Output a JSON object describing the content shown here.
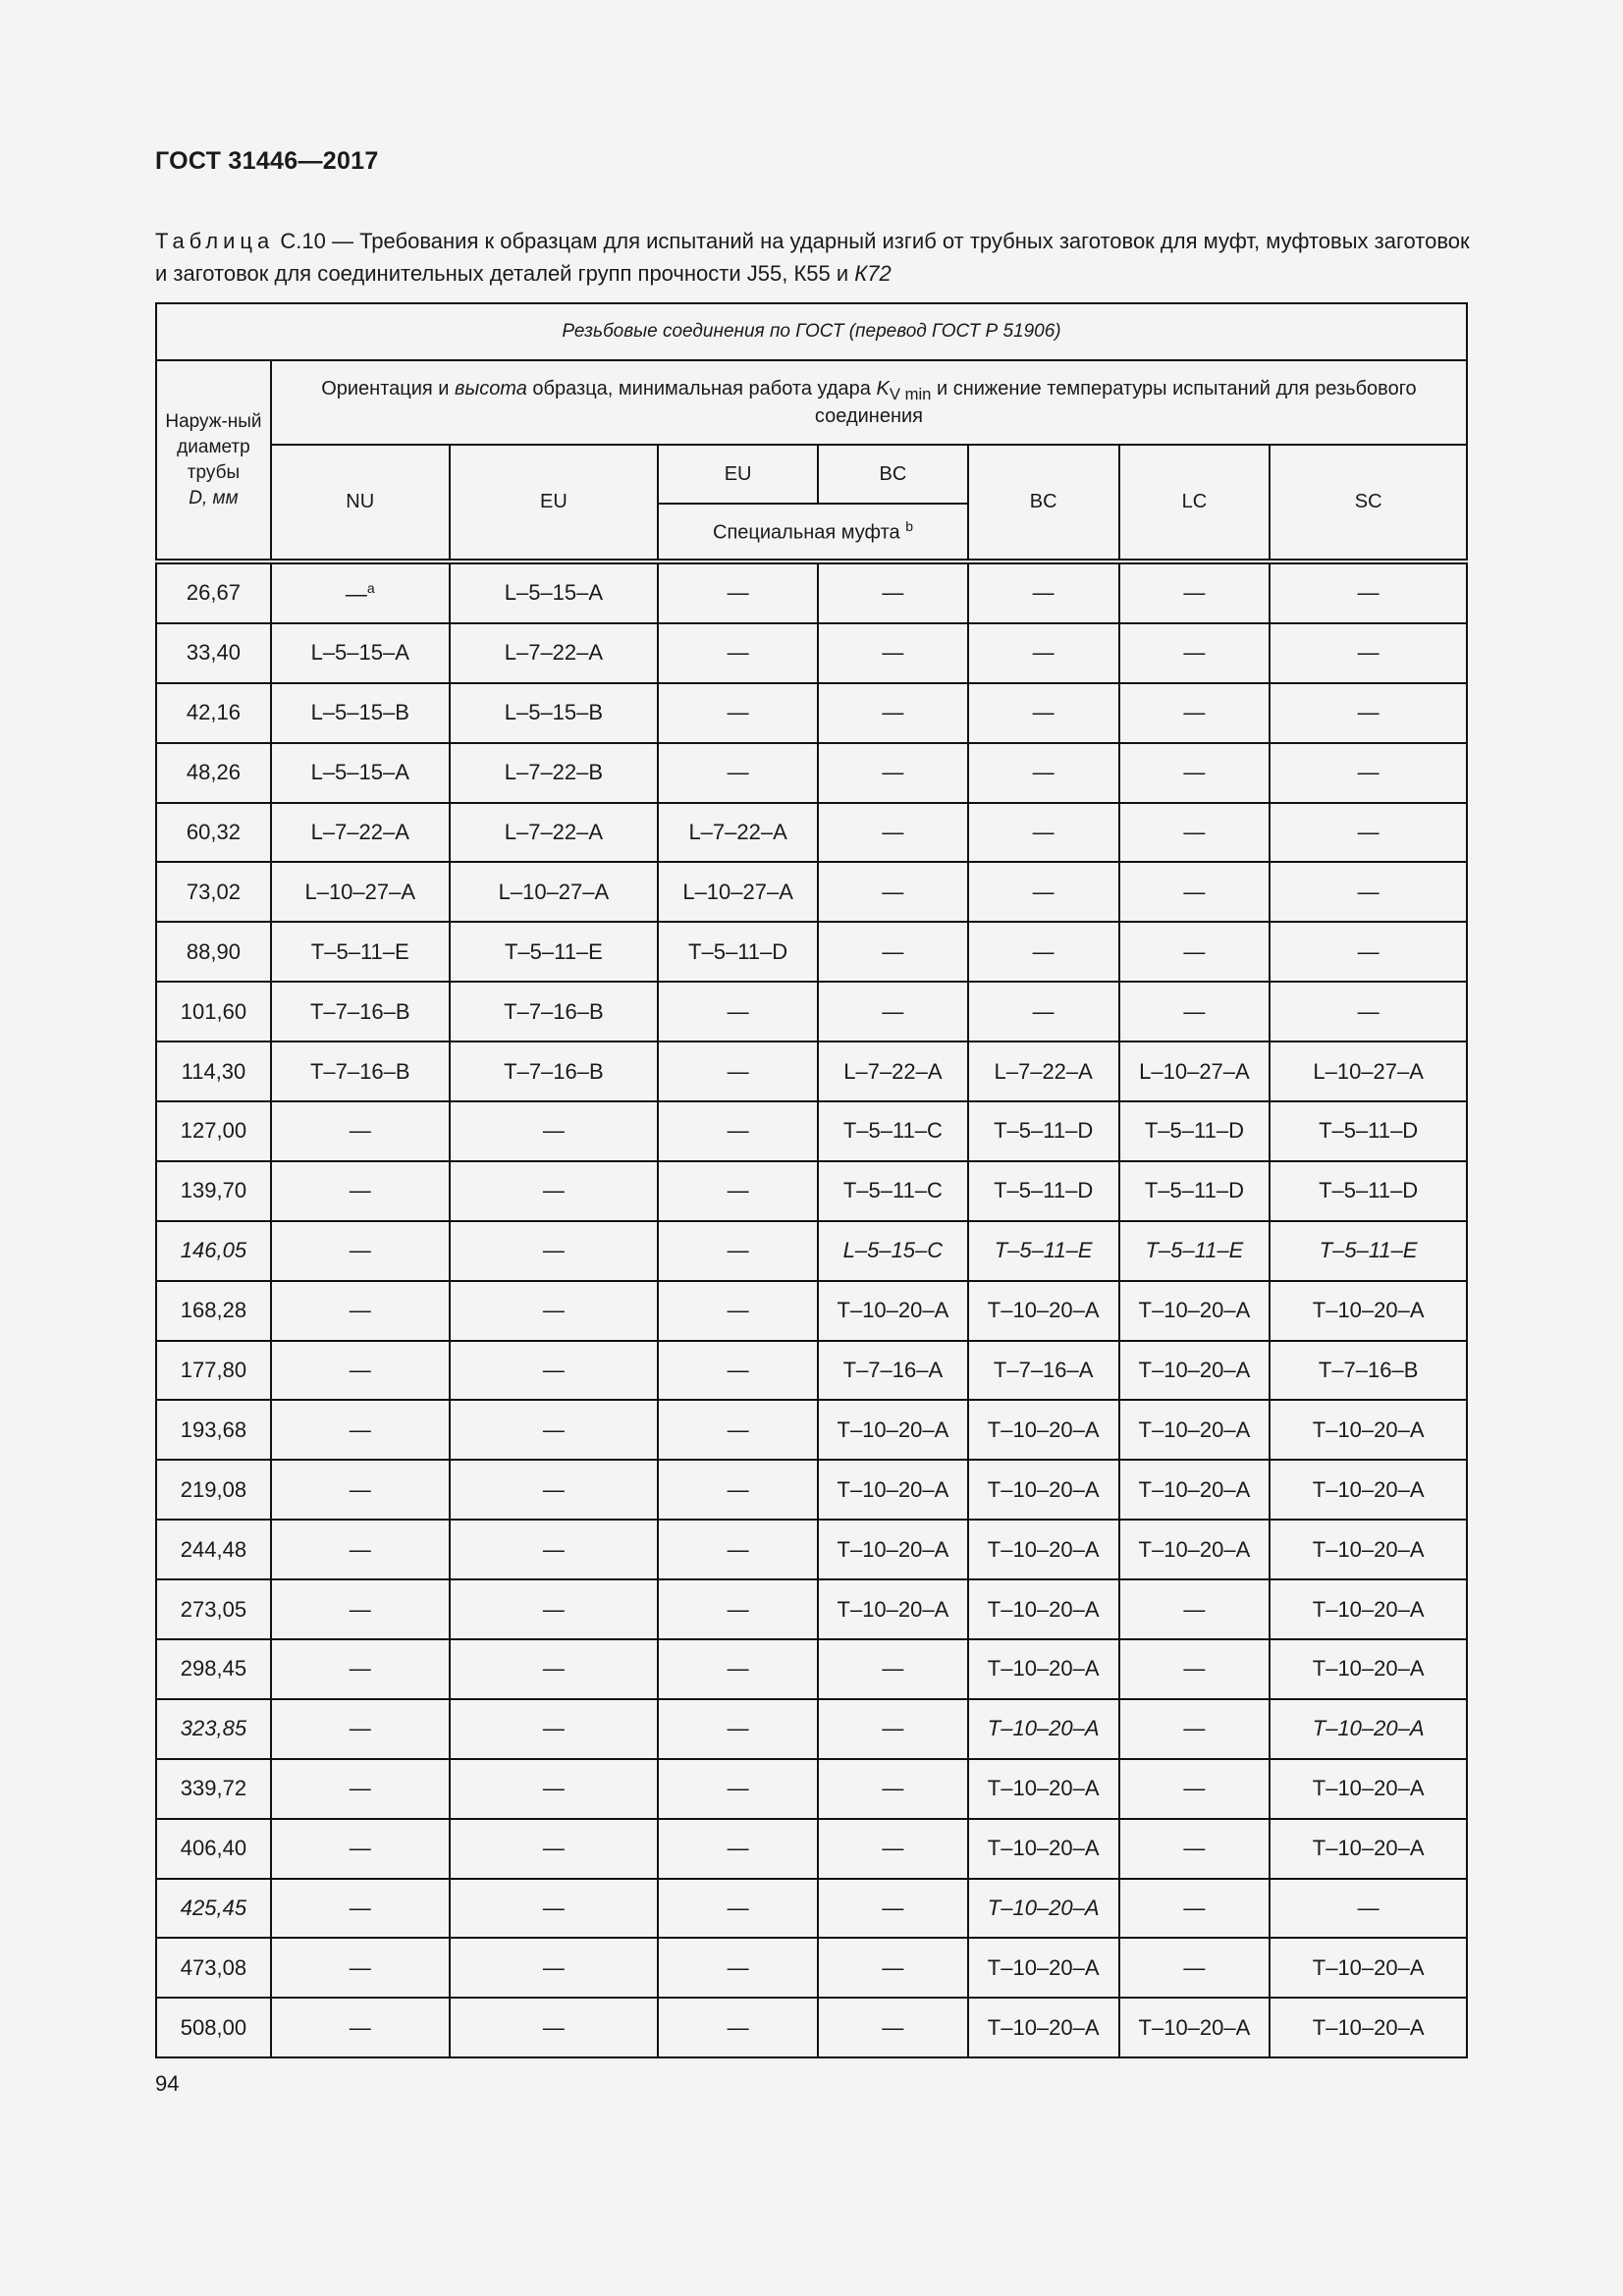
{
  "header": "ГОСТ 31446—2017",
  "caption": {
    "label": "Таблица",
    "text": "С.10 — Требования к образцам для испытаний на ударный изгиб от трубных заготовок для муфт, муфтовых заготовок и заготовок для соединительных деталей групп прочности J55, К55 и ",
    "italic_tail": "К72"
  },
  "table": {
    "title": "Резьбовые соединения по ГОСТ (перевод ГОСТ Р 51906)",
    "diameter_header": "Наруж-ный диаметр трубы",
    "diameter_unit": "D, мм",
    "orientation_header": {
      "a": "Ориентация и ",
      "b": "высота",
      "c": " образца, минимальная работа удара ",
      "k": "K",
      "ksub": "V min",
      "d": " и снижение температуры испытаний для резьбового соединения"
    },
    "columns": [
      "NU",
      "EU",
      "EU",
      "BC",
      "BC",
      "LC",
      "SC"
    ],
    "special": "Специальная муфта",
    "special_note": "b",
    "rows": [
      {
        "d": "26,67",
        "v": [
          "—",
          "L–5–15–A",
          "—",
          "—",
          "—",
          "—",
          "—"
        ],
        "note": "a"
      },
      {
        "d": "33,40",
        "v": [
          "L–5–15–A",
          "L–7–22–A",
          "—",
          "—",
          "—",
          "—",
          "—"
        ]
      },
      {
        "d": "42,16",
        "v": [
          "L–5–15–B",
          "L–5–15–B",
          "—",
          "—",
          "—",
          "—",
          "—"
        ]
      },
      {
        "d": "48,26",
        "v": [
          "L–5–15–A",
          "L–7–22–B",
          "—",
          "—",
          "—",
          "—",
          "—"
        ]
      },
      {
        "d": "60,32",
        "v": [
          "L–7–22–A",
          "L–7–22–A",
          "L–7–22–A",
          "—",
          "—",
          "—",
          "—"
        ]
      },
      {
        "d": "73,02",
        "v": [
          "L–10–27–A",
          "L–10–27–A",
          "L–10–27–A",
          "—",
          "—",
          "—",
          "—"
        ]
      },
      {
        "d": "88,90",
        "v": [
          "T–5–11–E",
          "T–5–11–E",
          "T–5–11–D",
          "—",
          "—",
          "—",
          "—"
        ]
      },
      {
        "d": "101,60",
        "v": [
          "T–7–16–B",
          "T–7–16–B",
          "—",
          "—",
          "—",
          "—",
          "—"
        ]
      },
      {
        "d": "114,30",
        "v": [
          "T–7–16–B",
          "T–7–16–B",
          "—",
          "L–7–22–A",
          "L–7–22–A",
          "L–10–27–A",
          "L–10–27–A"
        ]
      },
      {
        "d": "127,00",
        "v": [
          "—",
          "—",
          "—",
          "T–5–11–C",
          "T–5–11–D",
          "T–5–11–D",
          "T–5–11–D"
        ]
      },
      {
        "d": "139,70",
        "v": [
          "—",
          "—",
          "—",
          "T–5–11–C",
          "T–5–11–D",
          "T–5–11–D",
          "T–5–11–D"
        ]
      },
      {
        "d": "146,05",
        "v": [
          "—",
          "—",
          "—",
          "L–5–15–C",
          "T–5–11–E",
          "T–5–11–E",
          "T–5–11–E"
        ],
        "italic": [
          0,
          4,
          5,
          6,
          7
        ]
      },
      {
        "d": "168,28",
        "v": [
          "—",
          "—",
          "—",
          "T–10–20–A",
          "T–10–20–A",
          "T–10–20–A",
          "T–10–20–A"
        ]
      },
      {
        "d": "177,80",
        "v": [
          "—",
          "—",
          "—",
          "T–7–16–A",
          "T–7–16–A",
          "T–10–20–A",
          "T–7–16–B"
        ]
      },
      {
        "d": "193,68",
        "v": [
          "—",
          "—",
          "—",
          "T–10–20–A",
          "T–10–20–A",
          "T–10–20–A",
          "T–10–20–A"
        ]
      },
      {
        "d": "219,08",
        "v": [
          "—",
          "—",
          "—",
          "T–10–20–A",
          "T–10–20–A",
          "T–10–20–A",
          "T–10–20–A"
        ]
      },
      {
        "d": "244,48",
        "v": [
          "—",
          "—",
          "—",
          "T–10–20–A",
          "T–10–20–A",
          "T–10–20–A",
          "T–10–20–A"
        ]
      },
      {
        "d": "273,05",
        "v": [
          "—",
          "—",
          "—",
          "T–10–20–A",
          "T–10–20–A",
          "—",
          "T–10–20–A"
        ]
      },
      {
        "d": "298,45",
        "v": [
          "—",
          "—",
          "—",
          "—",
          "T–10–20–A",
          "—",
          "T–10–20–A"
        ]
      },
      {
        "d": "323,85",
        "v": [
          "—",
          "—",
          "—",
          "—",
          "T–10–20–A",
          "—",
          "T–10–20–A"
        ],
        "italic": [
          0,
          5,
          7
        ]
      },
      {
        "d": "339,72",
        "v": [
          "—",
          "—",
          "—",
          "—",
          "T–10–20–A",
          "—",
          "T–10–20–A"
        ]
      },
      {
        "d": "406,40",
        "v": [
          "—",
          "—",
          "—",
          "—",
          "T–10–20–A",
          "—",
          "T–10–20–A"
        ]
      },
      {
        "d": "425,45",
        "v": [
          "—",
          "—",
          "—",
          "—",
          "T–10–20–A",
          "—",
          "—"
        ],
        "italic": [
          0,
          5
        ]
      },
      {
        "d": "473,08",
        "v": [
          "—",
          "—",
          "—",
          "—",
          "T–10–20–A",
          "—",
          "T–10–20–A"
        ]
      },
      {
        "d": "508,00",
        "v": [
          "—",
          "—",
          "—",
          "—",
          "T–10–20–A",
          "T–10–20–A",
          "T–10–20–A"
        ]
      }
    ]
  },
  "page_number": "94"
}
